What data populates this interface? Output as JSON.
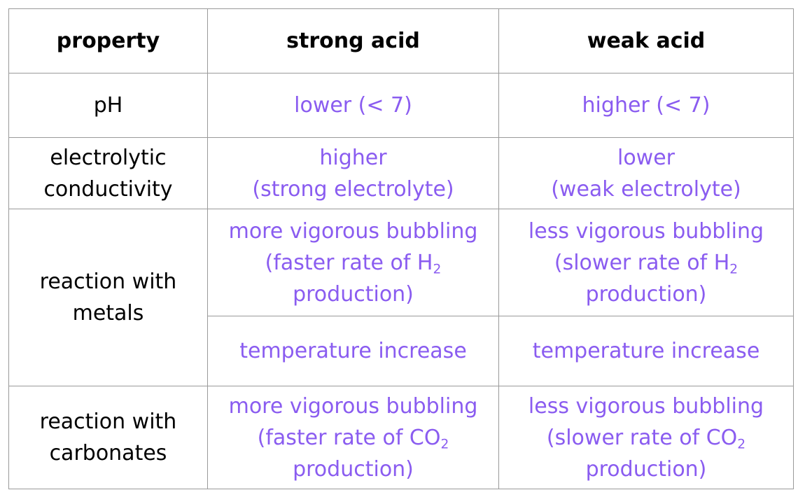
{
  "headers": {
    "property": "property",
    "strong": "strong acid",
    "weak": "weak acid"
  },
  "rows": {
    "ph": {
      "property": "pH",
      "strong": "lower (< 7)",
      "weak": "higher (< 7)"
    },
    "conductivity": {
      "property_line1": "electrolytic",
      "property_line2": "conductivity",
      "strong_line1": "higher",
      "strong_line2": "(strong electrolyte)",
      "weak_line1": "lower",
      "weak_line2": "(weak electrolyte)"
    },
    "metals": {
      "property_line1": "reaction with",
      "property_line2": "metals",
      "strong_line1": "more vigorous bubbling",
      "strong_line2_pre": "(faster rate of H",
      "strong_line2_sub": "2",
      "strong_line3": "production)",
      "weak_line1": "less vigorous bubbling",
      "weak_line2_pre": "(slower rate of H",
      "weak_line2_sub": "2",
      "weak_line3": "production)",
      "strong_temp": "temperature increase",
      "weak_temp": "temperature increase"
    },
    "carbonates": {
      "property_line1": "reaction with",
      "property_line2": "carbonates",
      "strong_line1": "more vigorous bubbling",
      "strong_line2_pre": "(faster rate of CO",
      "strong_line2_sub": "2",
      "strong_line3": "production)",
      "weak_line1": "less vigorous bubbling",
      "weak_line2_pre": "(slower rate of CO",
      "weak_line2_sub": "2",
      "weak_line3": "production)"
    }
  },
  "colors": {
    "value_text": "#8a5cf0",
    "border": "#9a9a9a"
  }
}
